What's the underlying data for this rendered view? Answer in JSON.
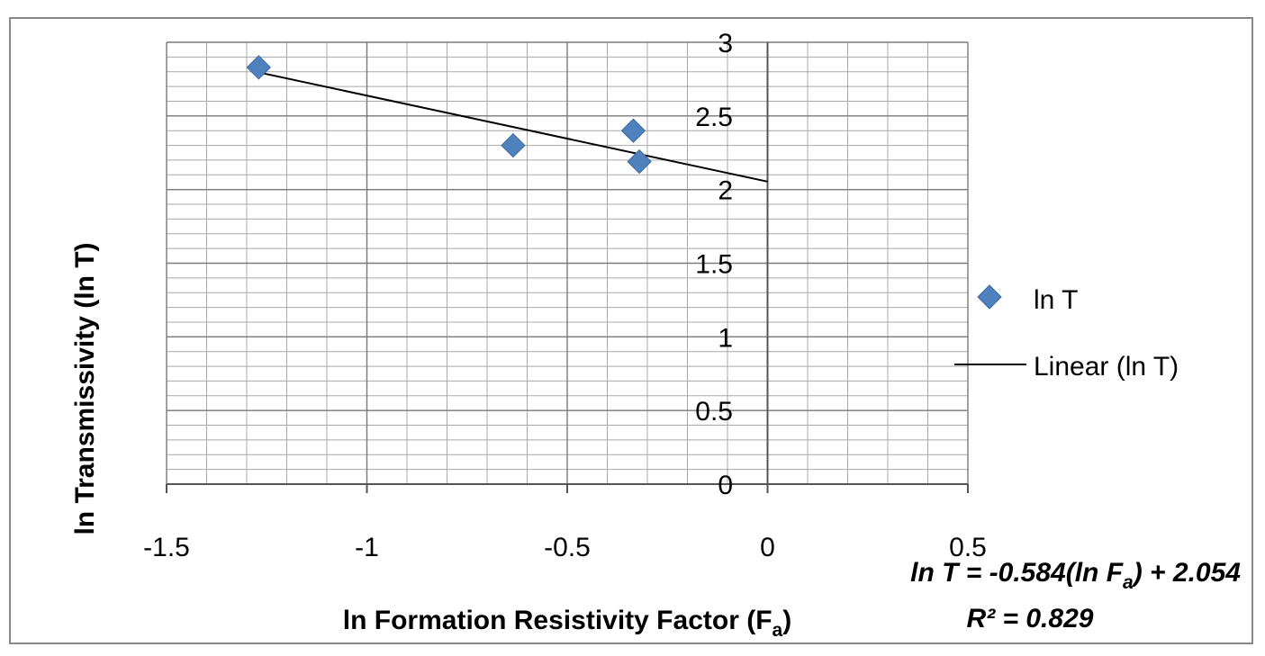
{
  "chart_data": {
    "type": "scatter",
    "title": "",
    "xlabel": "ln Formation Resistivity Factor (F",
    "xlabel_sub": "a",
    "xlabel_end": ")",
    "ylabel": "ln Transmissivity (ln T)",
    "xlim": [
      -1.5,
      0.5
    ],
    "ylim": [
      0,
      3
    ],
    "x_major_step": 0.5,
    "x_minor_step": 0.1,
    "y_major_step": 0.5,
    "y_minor_step": 0.1,
    "x_ticks": [
      "-1.5",
      "-1",
      "-0.5",
      "0",
      "0.5"
    ],
    "y_ticks": [
      "0",
      "0.5",
      "1",
      "1.5",
      "2",
      "2.5",
      "3"
    ],
    "grid": true,
    "legend_position": "right",
    "series": [
      {
        "name": "ln T",
        "marker": "diamond",
        "color": "#4f81bd",
        "x": [
          -1.27,
          -0.635,
          -0.335,
          -0.32
        ],
        "y": [
          2.83,
          2.3,
          2.4,
          2.19
        ]
      }
    ],
    "trendline": {
      "name": "Linear (ln T)",
      "color": "#000000",
      "slope": -0.584,
      "intercept": 2.054,
      "x_range": [
        -1.27,
        0
      ]
    },
    "equation": {
      "prefix": "ln T = -0.584(ln F",
      "sub": "a",
      "suffix": ") + 2.054",
      "r2": "R² = 0.829"
    }
  }
}
